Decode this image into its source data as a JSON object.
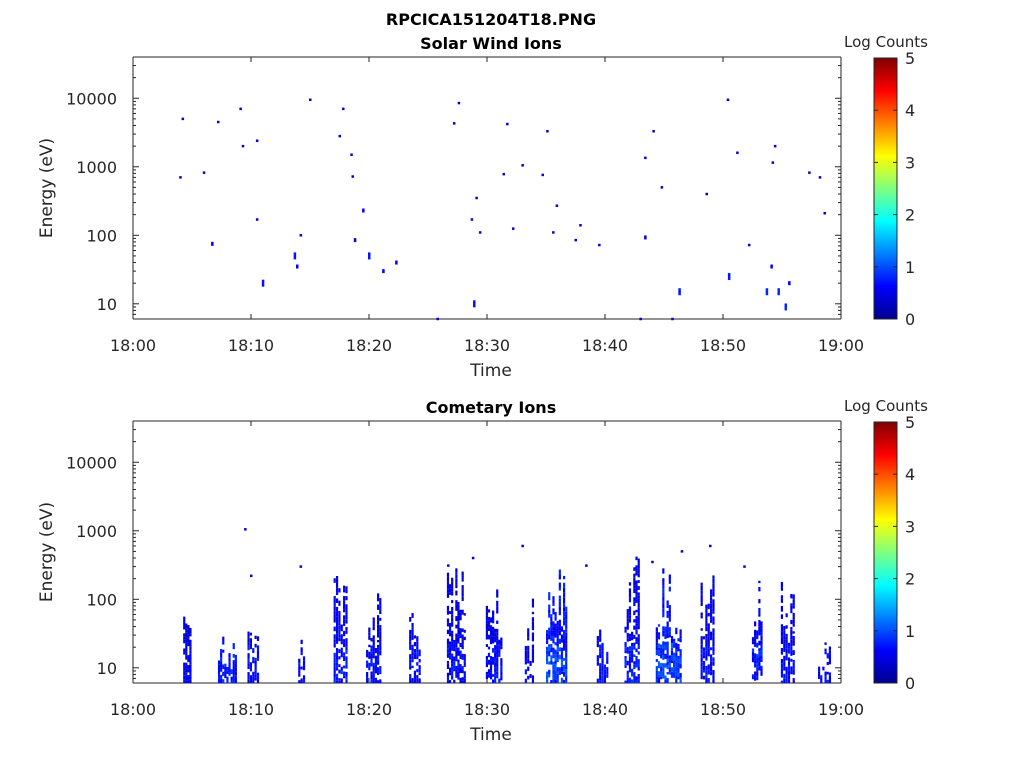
{
  "figure_title": "RPCICA151204T18.PNG",
  "chart_data": [
    {
      "type": "heatmap",
      "title": "Solar Wind Ions",
      "xlabel": "Time",
      "ylabel": "Energy (eV)",
      "x_ticks": [
        "18:00",
        "18:10",
        "18:20",
        "18:30",
        "18:40",
        "18:50",
        "19:00"
      ],
      "xlim_minutes": [
        0,
        60
      ],
      "y_ticks": [
        {
          "value": 10,
          "label": "10"
        },
        {
          "value": 100,
          "label": "100"
        },
        {
          "value": 1000,
          "label": "1000"
        },
        {
          "value": 10000,
          "label": "10000"
        }
      ],
      "ylim": [
        6,
        40000
      ],
      "y_scale": "log",
      "colorbar": {
        "label": "Log Counts",
        "min": 0,
        "max": 5,
        "ticks": [
          "0",
          "1",
          "2",
          "3",
          "4",
          "5"
        ],
        "colormap": "jet"
      },
      "points": [
        {
          "t": 4.0,
          "e": 700,
          "v": 0.2
        },
        {
          "t": 4.2,
          "e": 5000,
          "v": 0.2
        },
        {
          "t": 6.0,
          "e": 820,
          "v": 0.2
        },
        {
          "t": 6.7,
          "e": 75,
          "v": 0.4
        },
        {
          "t": 7.2,
          "e": 4500,
          "v": 0.2
        },
        {
          "t": 9.1,
          "e": 7000,
          "v": 0.2
        },
        {
          "t": 9.3,
          "e": 2000,
          "v": 0.2
        },
        {
          "t": 10.5,
          "e": 2400,
          "v": 0.2
        },
        {
          "t": 10.5,
          "e": 170,
          "v": 0.2
        },
        {
          "t": 11.0,
          "e": 20,
          "v": 0.5
        },
        {
          "t": 13.7,
          "e": 50,
          "v": 0.5
        },
        {
          "t": 13.9,
          "e": 35,
          "v": 0.3
        },
        {
          "t": 14.2,
          "e": 100,
          "v": 0.2
        },
        {
          "t": 15.0,
          "e": 9500,
          "v": 0.2
        },
        {
          "t": 17.5,
          "e": 2800,
          "v": 0.2
        },
        {
          "t": 17.8,
          "e": 7000,
          "v": 0.2
        },
        {
          "t": 18.5,
          "e": 1500,
          "v": 0.2
        },
        {
          "t": 18.6,
          "e": 720,
          "v": 0.2
        },
        {
          "t": 18.8,
          "e": 85,
          "v": 0.3
        },
        {
          "t": 19.5,
          "e": 230,
          "v": 0.3
        },
        {
          "t": 20.0,
          "e": 50,
          "v": 0.5
        },
        {
          "t": 21.2,
          "e": 30,
          "v": 0.4
        },
        {
          "t": 22.3,
          "e": 40,
          "v": 0.4
        },
        {
          "t": 25.8,
          "e": 6,
          "v": 0.2
        },
        {
          "t": 27.2,
          "e": 4300,
          "v": 0.2
        },
        {
          "t": 27.6,
          "e": 8500,
          "v": 0.2
        },
        {
          "t": 28.7,
          "e": 170,
          "v": 0.2
        },
        {
          "t": 28.9,
          "e": 10,
          "v": 0.5
        },
        {
          "t": 29.1,
          "e": 350,
          "v": 0.2
        },
        {
          "t": 29.4,
          "e": 110,
          "v": 0.2
        },
        {
          "t": 31.4,
          "e": 780,
          "v": 0.2
        },
        {
          "t": 31.7,
          "e": 4200,
          "v": 0.2
        },
        {
          "t": 32.2,
          "e": 125,
          "v": 0.2
        },
        {
          "t": 33.0,
          "e": 1050,
          "v": 0.2
        },
        {
          "t": 34.7,
          "e": 760,
          "v": 0.2
        },
        {
          "t": 35.1,
          "e": 3300,
          "v": 0.2
        },
        {
          "t": 35.6,
          "e": 110,
          "v": 0.2
        },
        {
          "t": 35.9,
          "e": 270,
          "v": 0.2
        },
        {
          "t": 37.5,
          "e": 85,
          "v": 0.2
        },
        {
          "t": 37.9,
          "e": 140,
          "v": 0.2
        },
        {
          "t": 39.5,
          "e": 72,
          "v": 0.2
        },
        {
          "t": 43.0,
          "e": 6,
          "v": 0.2
        },
        {
          "t": 43.4,
          "e": 1350,
          "v": 0.2
        },
        {
          "t": 43.4,
          "e": 93,
          "v": 0.3
        },
        {
          "t": 44.1,
          "e": 3300,
          "v": 0.2
        },
        {
          "t": 44.8,
          "e": 500,
          "v": 0.2
        },
        {
          "t": 45.7,
          "e": 6,
          "v": 0.2
        },
        {
          "t": 46.3,
          "e": 15,
          "v": 0.5
        },
        {
          "t": 48.6,
          "e": 400,
          "v": 0.2
        },
        {
          "t": 50.4,
          "e": 9500,
          "v": 0.2
        },
        {
          "t": 50.5,
          "e": 25,
          "v": 0.5
        },
        {
          "t": 51.2,
          "e": 1600,
          "v": 0.2
        },
        {
          "t": 52.2,
          "e": 72,
          "v": 0.2
        },
        {
          "t": 53.7,
          "e": 15,
          "v": 0.6
        },
        {
          "t": 54.1,
          "e": 35,
          "v": 0.4
        },
        {
          "t": 54.2,
          "e": 1150,
          "v": 0.2
        },
        {
          "t": 54.4,
          "e": 2000,
          "v": 0.2
        },
        {
          "t": 54.7,
          "e": 15,
          "v": 0.6
        },
        {
          "t": 55.3,
          "e": 9,
          "v": 0.6
        },
        {
          "t": 55.6,
          "e": 20,
          "v": 0.4
        },
        {
          "t": 57.3,
          "e": 820,
          "v": 0.2
        },
        {
          "t": 58.2,
          "e": 700,
          "v": 0.2
        },
        {
          "t": 58.6,
          "e": 210,
          "v": 0.2
        }
      ]
    },
    {
      "type": "heatmap",
      "title": "Cometary Ions",
      "xlabel": "Time",
      "ylabel": "Energy (eV)",
      "x_ticks": [
        "18:00",
        "18:10",
        "18:20",
        "18:30",
        "18:40",
        "18:50",
        "19:00"
      ],
      "xlim_minutes": [
        0,
        60
      ],
      "y_ticks": [
        {
          "value": 10,
          "label": "10"
        },
        {
          "value": 100,
          "label": "100"
        },
        {
          "value": 1000,
          "label": "1000"
        },
        {
          "value": 10000,
          "label": "10000"
        }
      ],
      "ylim": [
        6,
        40000
      ],
      "y_scale": "log",
      "colorbar": {
        "label": "Log Counts",
        "min": 0,
        "max": 5,
        "ticks": [
          "0",
          "1",
          "2",
          "3",
          "4",
          "5"
        ],
        "colormap": "jet"
      },
      "bursts": [
        {
          "t": 4.6,
          "top": 110,
          "v": 0.25,
          "w": 0.7
        },
        {
          "t": 8.0,
          "top": 40,
          "v": 0.35,
          "w": 1.6
        },
        {
          "t": 10.2,
          "top": 60,
          "v": 0.3,
          "w": 1.0
        },
        {
          "t": 14.3,
          "top": 55,
          "v": 0.3,
          "w": 0.6
        },
        {
          "t": 17.6,
          "top": 280,
          "v": 0.35,
          "w": 1.2
        },
        {
          "t": 20.4,
          "top": 150,
          "v": 0.3,
          "w": 1.3
        },
        {
          "t": 23.9,
          "top": 100,
          "v": 0.3,
          "w": 1.0
        },
        {
          "t": 27.4,
          "top": 300,
          "v": 0.3,
          "w": 1.6
        },
        {
          "t": 30.6,
          "top": 250,
          "v": 0.3,
          "w": 1.4
        },
        {
          "t": 33.6,
          "top": 110,
          "v": 0.3,
          "w": 0.8
        },
        {
          "t": 35.9,
          "top": 420,
          "v": 0.45,
          "w": 1.8
        },
        {
          "t": 39.8,
          "top": 60,
          "v": 0.3,
          "w": 1.0
        },
        {
          "t": 42.3,
          "top": 450,
          "v": 0.35,
          "w": 1.3
        },
        {
          "t": 45.4,
          "top": 280,
          "v": 0.45,
          "w": 2.2
        },
        {
          "t": 48.7,
          "top": 260,
          "v": 0.3,
          "w": 1.2
        },
        {
          "t": 52.9,
          "top": 220,
          "v": 0.35,
          "w": 0.9
        },
        {
          "t": 55.5,
          "top": 230,
          "v": 0.3,
          "w": 1.2
        },
        {
          "t": 58.6,
          "top": 28,
          "v": 0.3,
          "w": 1.1
        }
      ],
      "points": [
        {
          "t": 9.5,
          "e": 1050,
          "v": 0.2
        },
        {
          "t": 10.0,
          "e": 220,
          "v": 0.2
        },
        {
          "t": 14.2,
          "e": 300,
          "v": 0.2
        },
        {
          "t": 26.7,
          "e": 310,
          "v": 0.2
        },
        {
          "t": 28.8,
          "e": 400,
          "v": 0.2
        },
        {
          "t": 33.0,
          "e": 600,
          "v": 0.2
        },
        {
          "t": 38.4,
          "e": 310,
          "v": 0.2
        },
        {
          "t": 44.0,
          "e": 350,
          "v": 0.2
        },
        {
          "t": 46.5,
          "e": 500,
          "v": 0.2
        },
        {
          "t": 48.9,
          "e": 600,
          "v": 0.2
        },
        {
          "t": 51.8,
          "e": 300,
          "v": 0.2
        }
      ]
    }
  ]
}
